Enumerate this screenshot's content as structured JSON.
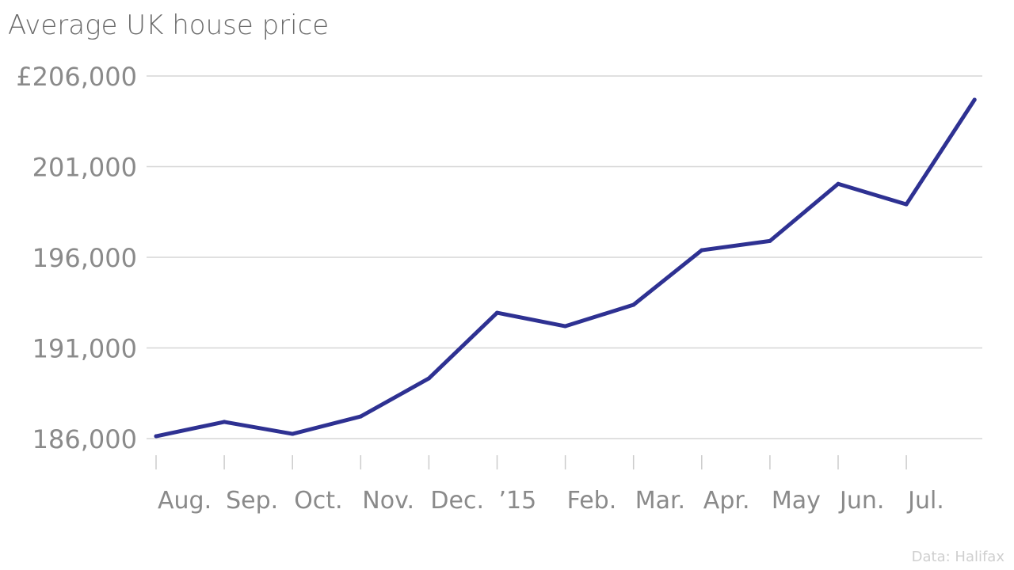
{
  "chart_data": {
    "type": "line",
    "title": "Average UK house price",
    "source": "Data: Halifax",
    "y_prefix": "£",
    "y_ticks": [
      186000,
      191000,
      196000,
      201000,
      206000
    ],
    "y_tick_labels": [
      "186,000",
      "191,000",
      "196,000",
      "201,000",
      "£206,000"
    ],
    "ylim": [
      186000,
      206000
    ],
    "x_tick_labels": [
      "Aug.",
      "Sep.",
      "Oct.",
      "Nov.",
      "Dec.",
      "’15",
      "Feb.",
      "Mar.",
      "Apr.",
      "May",
      "Jun.",
      "Jul."
    ],
    "grid": true,
    "series": [
      {
        "color": "#2e3192",
        "values": [
          186130,
          186920,
          186260,
          187220,
          189320,
          192940,
          192200,
          193380,
          196390,
          196900,
          200050,
          198920,
          204690
        ]
      }
    ]
  }
}
